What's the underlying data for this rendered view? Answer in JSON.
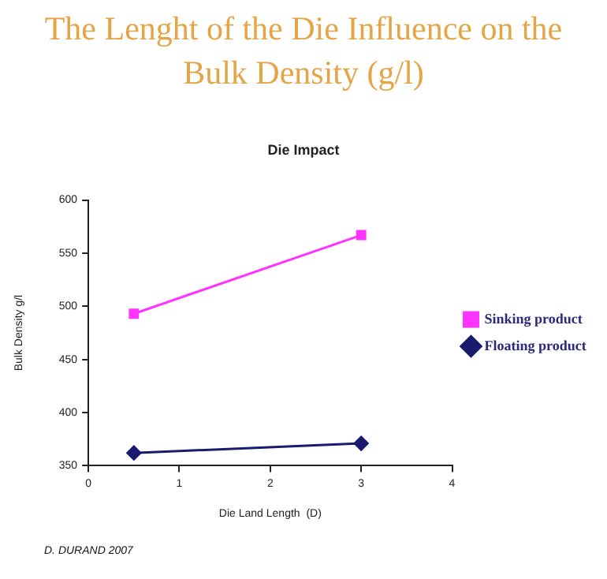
{
  "chart_data": {
    "type": "line",
    "title": "The Lenght of the Die Influence on the Bulk Density (g/l)",
    "subtitle": "Die Impact",
    "xlabel": "Die Land Length  (D)",
    "ylabel": "Bulk Density g/l",
    "x": [
      0.5,
      3
    ],
    "series": [
      {
        "name": "Sinking product",
        "color": "#ff33ff",
        "values": [
          493,
          567
        ],
        "marker": "square"
      },
      {
        "name": "Floating product",
        "color": "#1a1a6e",
        "values": [
          362,
          371
        ],
        "marker": "diamond"
      }
    ],
    "xlim": [
      0,
      4
    ],
    "xticks": [
      0,
      1,
      2,
      3,
      4
    ],
    "ylim": [
      350,
      600
    ],
    "yticks": [
      350,
      400,
      450,
      500,
      550,
      600
    ],
    "grid": false,
    "legend": "right",
    "line_style": "solid",
    "annotations": [
      "D. DURAND 2007"
    ]
  }
}
